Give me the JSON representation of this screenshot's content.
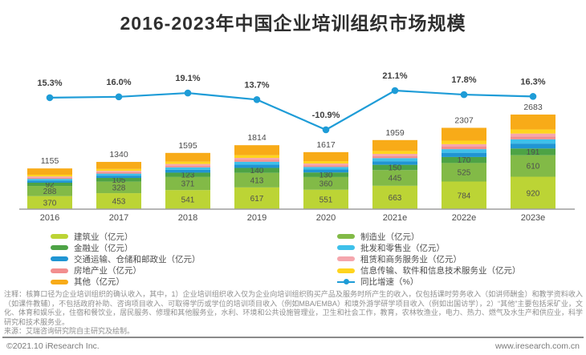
{
  "title": "2016-2023年中国企业培训组织市场规模",
  "chart_data": {
    "type": "bar",
    "subtype": "stacked-bar-with-growth-line",
    "title": "2016-2023年中国企业培训组织市场规模",
    "categories": [
      "2016",
      "2017",
      "2018",
      "2019",
      "2020",
      "2021e",
      "2022e",
      "2023e"
    ],
    "totals": [
      1155,
      1340,
      1595,
      1814,
      1617,
      1959,
      2307,
      2683
    ],
    "unit": "亿元",
    "series": [
      {
        "name": "建筑业",
        "color": "#bcd435",
        "labeled": true,
        "values": [
          370,
          453,
          541,
          617,
          551,
          663,
          784,
          920
        ]
      },
      {
        "name": "制造业",
        "color": "#82ba47",
        "labeled": true,
        "values": [
          288,
          328,
          371,
          413,
          360,
          445,
          525,
          610
        ]
      },
      {
        "name": "金融业",
        "color": "#4da345",
        "labeled": true,
        "values": [
          92,
          105,
          123,
          140,
          130,
          150,
          170,
          191
        ]
      },
      {
        "name": "交通运输、仓储和邮政业",
        "color": "#2095d3",
        "labeled": false
      },
      {
        "name": "批发和零售业",
        "color": "#3ec0ea",
        "labeled": false
      },
      {
        "name": "房地产业",
        "color": "#f28e8e",
        "labeled": false
      },
      {
        "name": "租赁和商务服务业",
        "color": "#f5a6ad",
        "labeled": false
      },
      {
        "name": "信息传输、软件和信息技术服务业",
        "color": "#ffd41e",
        "labeled": false
      },
      {
        "name": "其他",
        "color": "#f8ab18",
        "labeled": false
      }
    ],
    "line": {
      "name": "同比增速（%）",
      "color": "#1e9cd7",
      "values": [
        15.3,
        16.0,
        19.1,
        13.7,
        -10.9,
        21.1,
        17.8,
        16.3
      ],
      "labels": [
        "15.3%",
        "16.0%",
        "19.1%",
        "13.7%",
        "-10.9%",
        "21.1%",
        "17.8%",
        "16.3%"
      ]
    }
  },
  "legend": {
    "left": [
      {
        "label": "建筑业（亿元）",
        "marker": "swatch",
        "color": "#bcd435"
      },
      {
        "label": "金融业（亿元）",
        "marker": "swatch",
        "color": "#4da345"
      },
      {
        "label": "交通运输、仓储和邮政业（亿元）",
        "marker": "swatch",
        "color": "#2095d3"
      },
      {
        "label": "房地产业（亿元）",
        "marker": "swatch",
        "color": "#f28e8e"
      },
      {
        "label": "其他（亿元）",
        "marker": "swatch",
        "color": "#f8ab18"
      }
    ],
    "right": [
      {
        "label": "制造业（亿元）",
        "marker": "swatch",
        "color": "#82ba47"
      },
      {
        "label": "批发和零售业（亿元）",
        "marker": "swatch",
        "color": "#3ec0ea"
      },
      {
        "label": "租赁和商务服务业（亿元）",
        "marker": "swatch",
        "color": "#f5a6ad"
      },
      {
        "label": "信息传输、软件和信息技术服务业（亿元）",
        "marker": "swatch",
        "color": "#ffd41e"
      },
      {
        "label": "同比增速（%）",
        "marker": "line",
        "color": "#1e9cd7"
      }
    ]
  },
  "notes": "注释：核算口径为企业培训组织的确认收入，其中，1）企业培训组织收入仅为企业向培训组织购买产品及服务时所产生的收入，仅包括课时劳务收入（如讲师酬金）和教学资料收入（如课件教辅），不包括政府补助、咨询项目收入、可取得学历或学位的培训项目收入（例如MBA/EMBA）和境外游学研学项目收入（例如出国访学），2）“其他”主要包括采矿业，文化、体育和娱乐业，住宿和餐饮业，居民服务、修理和其他服务业，水利、环境和公共设施管理业，卫生和社会工作，教育，农林牧渔业，电力、热力、燃气及水生产和供应业，科学研究和技术服务业。",
  "source": "来源：艾瑞咨询研究院自主研究及绘制。",
  "footer": {
    "left": "©2021.10 iResearch Inc.",
    "right": "www.iresearch.com.cn"
  }
}
